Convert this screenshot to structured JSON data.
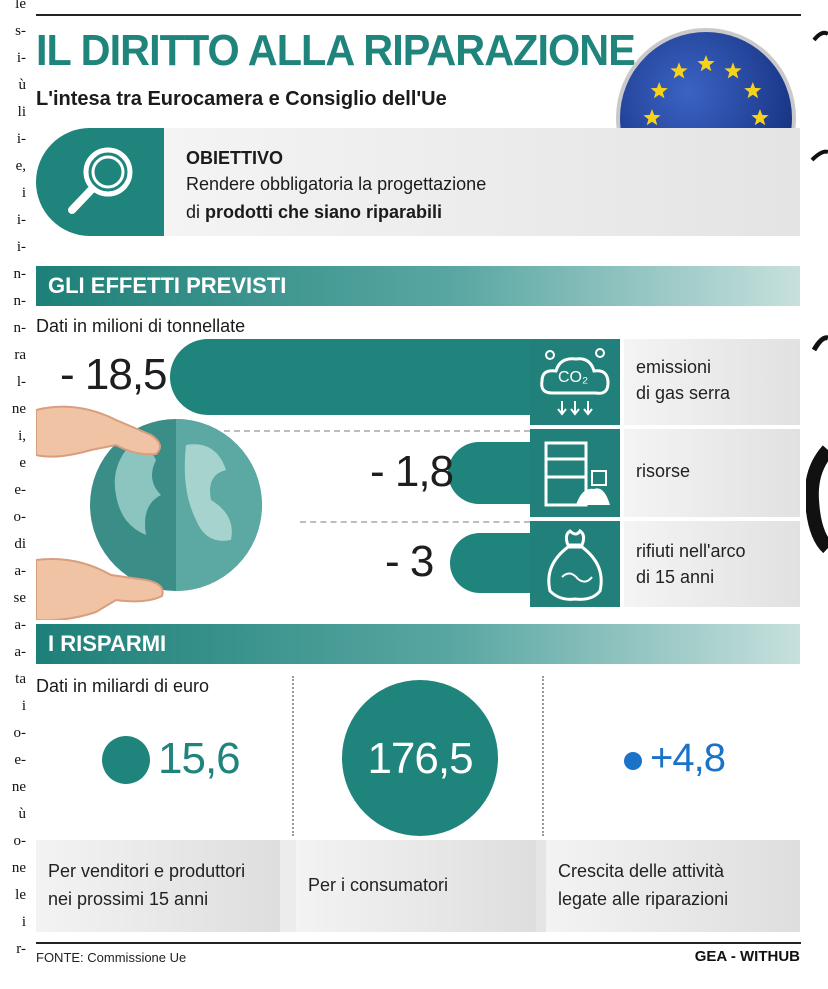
{
  "title": "IL DIRITTO ALLA RIPARAZIONE",
  "subtitle": "L'intesa tra Eurocamera e Consiglio dell'Ue",
  "objective": {
    "label": "OBIETTIVO",
    "line1": "Rendere obbligatoria la progettazione",
    "line2_prefix": "di ",
    "line2_bold": "prodotti che siano riparabili"
  },
  "effects": {
    "heading": "GLI EFFETTI PREVISTI",
    "unit": "Dati in milioni di tonnellate",
    "items": [
      {
        "value": "- 18,5",
        "label1": "emissioni",
        "label2": "di gas serra",
        "icon": "co2-cloud-icon"
      },
      {
        "value": "- 1,8",
        "label1": "risorse",
        "label2": "",
        "icon": "resources-barrels-icon"
      },
      {
        "value": "- 3",
        "label1": "rifiuti nell'arco",
        "label2": "di 15 anni",
        "icon": "garbage-bag-icon"
      }
    ],
    "co2_text": "CO₂"
  },
  "savings": {
    "heading": "I RISPARMI",
    "unit": "Dati in miliardi di euro",
    "items": [
      {
        "value": "15,6",
        "label1": "Per venditori e produttori",
        "label2": "nei prossimi 15 anni"
      },
      {
        "value": "176,5",
        "label1": "Per i consumatori",
        "label2": ""
      },
      {
        "value": "+4,8",
        "label1": "Crescita delle attività",
        "label2": "legate alle riparazioni"
      }
    ]
  },
  "source": "FONTE: Commissione Ue",
  "credit": "GEA - WITHUB",
  "left_column_fragments": [
    "le",
    "s-",
    "i-",
    "ù",
    "li",
    "i-",
    "e,",
    "i",
    "i-",
    "i-",
    "n-",
    "n-",
    "n-",
    "ra",
    "l-",
    "ne",
    "i,",
    "e",
    "e-",
    "o-",
    "di",
    "a-",
    "se",
    "a-",
    "a-",
    "ta",
    "i",
    "o-",
    "e-",
    "ne",
    "ù",
    "o-",
    "ne",
    "le",
    "i",
    "r-"
  ],
  "colors": {
    "teal": "#1e847c",
    "eu_blue": "#1d3f9c",
    "eu_star": "#f6d21a",
    "blue_dot": "#1a73c9"
  }
}
